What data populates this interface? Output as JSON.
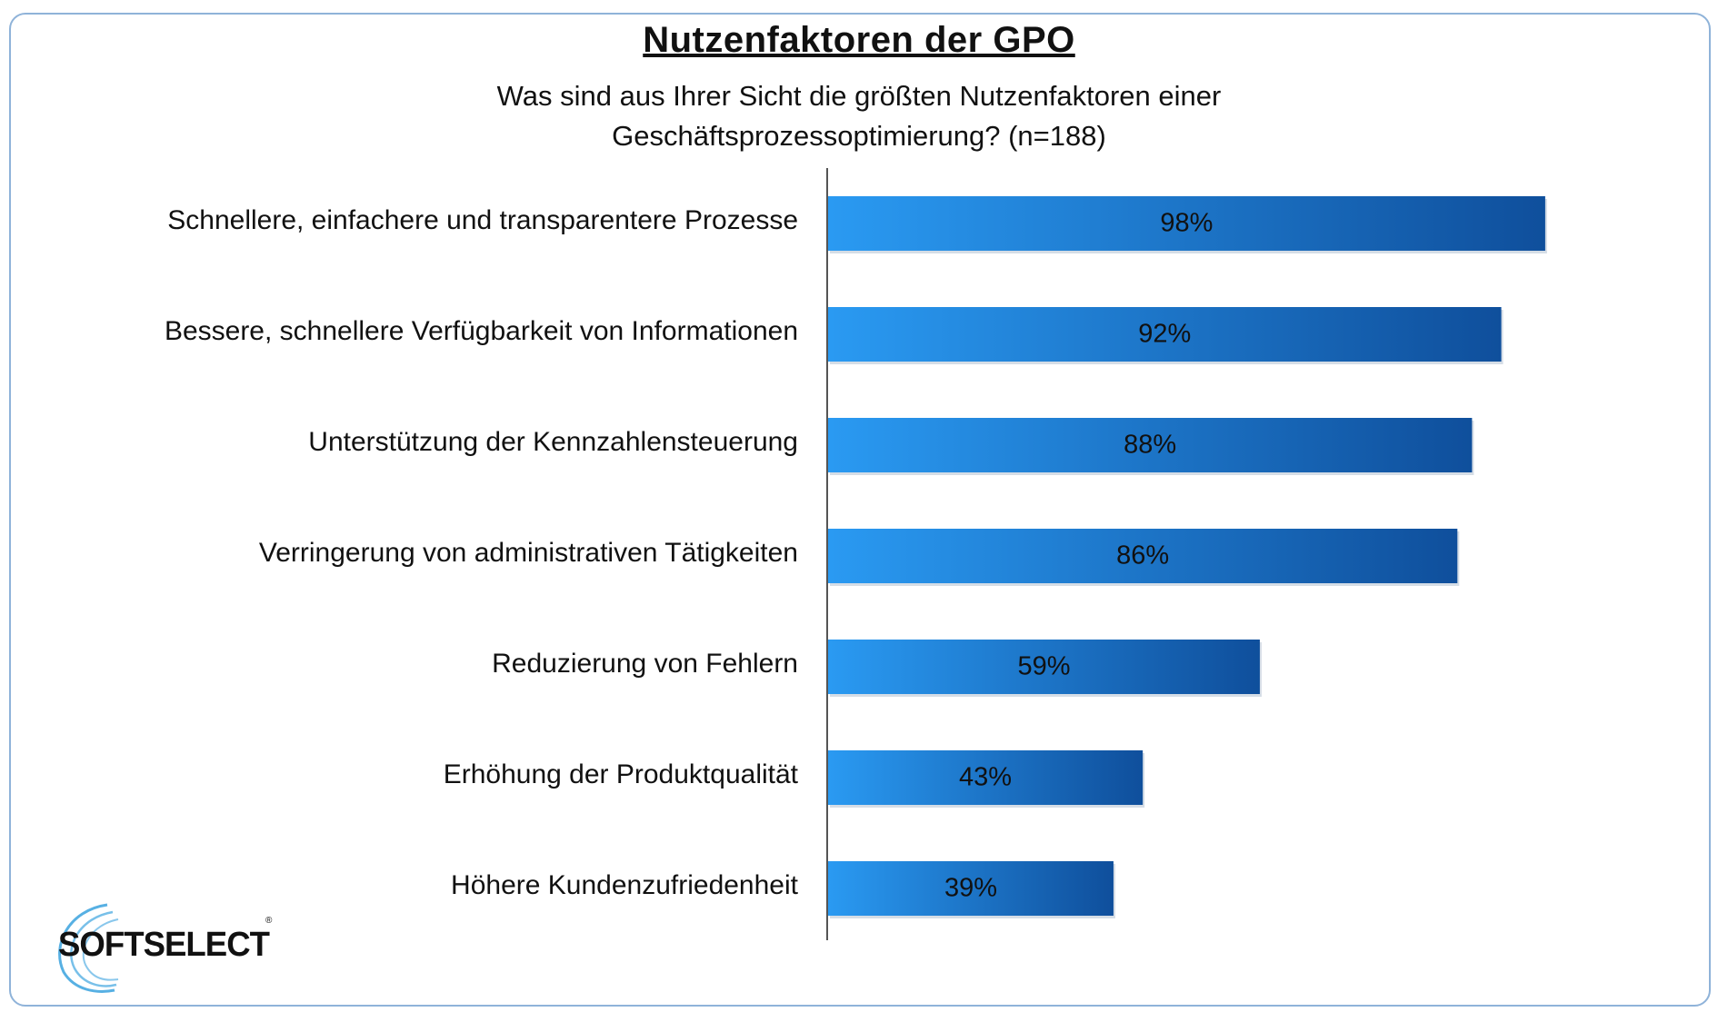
{
  "chart_data": {
    "type": "bar",
    "orientation": "horizontal",
    "title": "Nutzenfaktoren der GPO",
    "subtitle_line1": "Was sind aus Ihrer Sicht die größten Nutzenfaktoren einer",
    "subtitle_line2": "Geschäftsprozessoptimierung? (n=188)",
    "categories": [
      "Schnellere, einfachere und transparentere Prozesse",
      "Bessere, schnellere Verfügbarkeit von Informationen",
      "Unterstützung der Kennzahlensteuerung",
      "Verringerung von administrativen Tätigkeiten",
      "Reduzierung von Fehlern",
      "Erhöhung der Produktqualität",
      "Höhere Kundenzufriedenheit"
    ],
    "values": [
      98,
      92,
      88,
      86,
      59,
      43,
      39
    ],
    "value_labels": [
      "98%",
      "92%",
      "88%",
      "86%",
      "59%",
      "43%",
      "39%"
    ],
    "xlim": [
      0,
      100
    ],
    "xlabel": "",
    "ylabel": "",
    "grid": false,
    "legend": "none",
    "bar_color_start": "#2a9af2",
    "bar_color_end": "#0f4f9c"
  },
  "logo": {
    "text": "SOFTSELECT",
    "trademark": "®"
  },
  "colors": {
    "frame_border": "#8fb3d9",
    "axis_line": "#555555"
  }
}
